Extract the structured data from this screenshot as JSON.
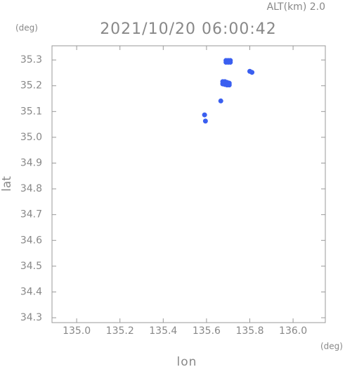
{
  "chart_data": {
    "type": "scatter",
    "title": "2021/10/20 06:00:42",
    "subtitle": "ALT(km) 2.0",
    "x_label": "lon",
    "y_label": "lat",
    "x_unit": "(deg)",
    "y_unit": "(deg)",
    "xlim": [
      134.886,
      136.149
    ],
    "ylim": [
      34.281,
      35.355
    ],
    "xticks": [
      {
        "value": 135,
        "label": "135.0"
      },
      135.2,
      135.4,
      135.6,
      135.8,
      {
        "value": 136,
        "label": "136.0"
      }
    ],
    "yticks": [
      34.3,
      34.4,
      34.5,
      34.6,
      34.7,
      34.8,
      34.9,
      {
        "value": 35,
        "label": "35.0"
      },
      35.1,
      35.2,
      35.3
    ],
    "series": [
      {
        "color": "#3a5ff0",
        "x": [
          135.69,
          135.7,
          135.71,
          135.69,
          135.7,
          135.71,
          135.675,
          135.685,
          135.695,
          135.705,
          135.675,
          135.685,
          135.695,
          135.705,
          135.8,
          135.81,
          135.666,
          135.591,
          135.595
        ],
        "values": [
          35.298,
          35.298,
          35.298,
          35.291,
          35.291,
          35.291,
          35.216,
          35.216,
          35.213,
          35.21,
          35.207,
          35.205,
          35.203,
          35.203,
          35.256,
          35.252,
          35.141,
          35.087,
          35.063
        ]
      }
    ]
  }
}
